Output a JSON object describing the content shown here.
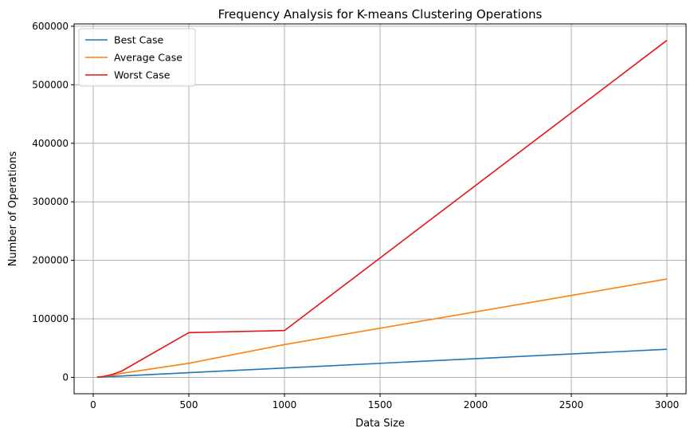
{
  "chart_data": {
    "type": "line",
    "title": "Frequency Analysis for K-means Clustering Operations",
    "xlabel": "Data Size",
    "ylabel": "Number of Operations",
    "xlim": [
      -100,
      3100
    ],
    "ylim": [
      -28000,
      604000
    ],
    "xticks": [
      0,
      500,
      1000,
      1500,
      2000,
      2500,
      3000
    ],
    "yticks": [
      0,
      100000,
      200000,
      300000,
      400000,
      500000,
      600000
    ],
    "grid": true,
    "legend_position": "top-left",
    "series": [
      {
        "name": "Best Case",
        "color": "#1f77b4",
        "x": [
          20,
          50,
          100,
          150,
          500,
          1000,
          3000
        ],
        "y": [
          320,
          800,
          1600,
          2400,
          8000,
          16000,
          48000
        ]
      },
      {
        "name": "Average Case",
        "color": "#ff7f0e",
        "x": [
          20,
          50,
          100,
          150,
          500,
          1000,
          3000
        ],
        "y": [
          600,
          1500,
          3500,
          7000,
          24000,
          56000,
          168000
        ]
      },
      {
        "name": "Worst Case",
        "color": "#e8141a",
        "x": [
          20,
          50,
          100,
          150,
          500,
          1000,
          3000
        ],
        "y": [
          400,
          1200,
          5000,
          11000,
          76500,
          80000,
          576000
        ]
      }
    ]
  }
}
